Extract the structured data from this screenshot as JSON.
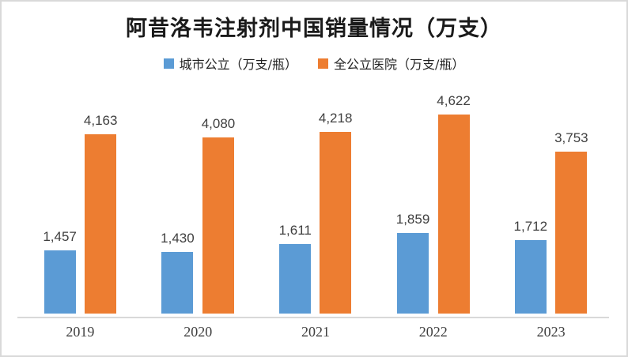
{
  "chart": {
    "title": "阿昔洛韦注射剂中国销量情况（万支）"
  },
  "legend": {
    "items": [
      {
        "label": "城市公立（万支/瓶）",
        "color": "#5b9bd5"
      },
      {
        "label": "全公立医院（万支/瓶）",
        "color": "#ed7d31"
      }
    ]
  },
  "colors": {
    "series_blue": "#5b9bd5",
    "series_orange": "#ed7d31",
    "axis_line": "#d9d9d9",
    "frame_border": "#d9d9d9",
    "label_text": "#3f3f3f",
    "title_text": "#1a1a1a"
  },
  "chart_data": {
    "type": "bar",
    "title": "阿昔洛韦注射剂中国销量情况（万支）",
    "categories": [
      "2019",
      "2020",
      "2021",
      "2022",
      "2023"
    ],
    "series": [
      {
        "name": "城市公立（万支/瓶）",
        "color": "#5b9bd5",
        "values": [
          1457,
          1430,
          1611,
          1859,
          1712
        ],
        "labels": [
          "1,457",
          "1,430",
          "1,611",
          "1,859",
          "1,712"
        ]
      },
      {
        "name": "全公立医院（万支/瓶）",
        "color": "#ed7d31",
        "values": [
          4163,
          4080,
          4218,
          4622,
          3753
        ],
        "labels": [
          "4,163",
          "4,080",
          "4,218",
          "4,622",
          "3,753"
        ]
      }
    ],
    "xlabel": "",
    "ylabel": "",
    "ylim": [
      0,
      5000
    ],
    "grid": false,
    "legend_position": "top",
    "data_labels": true
  }
}
